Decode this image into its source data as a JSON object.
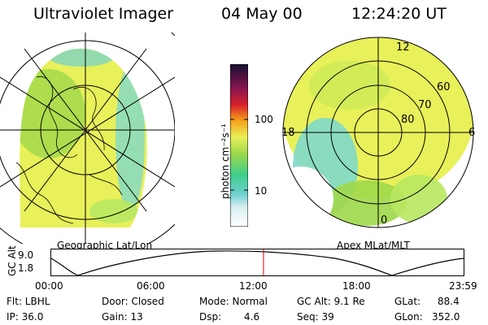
{
  "header": {
    "instrument": "Ultraviolet Imager",
    "date": "04 May 00",
    "time": "12:24:20 UT"
  },
  "colorbar": {
    "unit_label": "photon cm⁻²s⁻¹",
    "ticks": [
      "100",
      "10"
    ]
  },
  "left_map": {
    "caption": "Geographic Lat/Lon"
  },
  "right_map": {
    "caption": "Apex MLat/MLT",
    "mlt_labels": {
      "top": "12",
      "left": "18",
      "right": "6",
      "bottom": "0"
    },
    "lat_labels": [
      "60",
      "70",
      "80"
    ]
  },
  "altitude_plot": {
    "ylabel": "GC Alt",
    "yticks": [
      "9.0",
      "1.8"
    ],
    "xticks": [
      "00:00",
      "06:00",
      "12:00",
      "18:00",
      "23:59"
    ],
    "marker_color": "#cc0000"
  },
  "status": {
    "row1": {
      "filter": "Flt: LBHL",
      "door": "Door: Closed",
      "mode": "Mode: Normal",
      "gc_alt": "GC Alt: 9.1 Re",
      "glat_label": "GLat:",
      "glat_value": "88.4"
    },
    "row2": {
      "ip": "IP: 36.0",
      "gain": "Gain: 13",
      "dsp_label": "Dsp:",
      "dsp_value": "4.6",
      "seq": "Seq: 39",
      "glon_label": "GLon:",
      "glon_value": "352.0"
    }
  }
}
